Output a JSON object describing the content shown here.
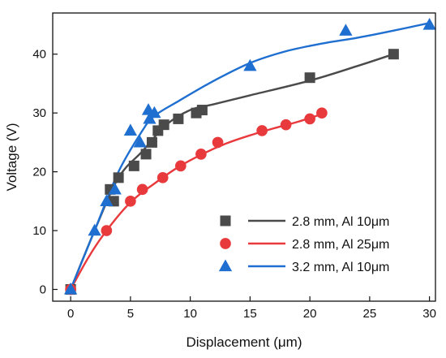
{
  "chart_data": {
    "type": "scatter",
    "xlabel": "Displacement (μm)",
    "ylabel": "Voltage (V)",
    "xlim": [
      -1.5,
      30.5
    ],
    "ylim": [
      -2,
      47
    ],
    "xticks": [
      0,
      5,
      10,
      15,
      20,
      25,
      30
    ],
    "yticks": [
      0,
      10,
      20,
      30,
      40
    ],
    "grid": false,
    "legend_position": "bottom-right",
    "series": [
      {
        "name": "2.8 mm, Al 10μm",
        "color": "#4a4a4a",
        "marker": "square",
        "points": [
          [
            0,
            0
          ],
          [
            3.3,
            17
          ],
          [
            3.6,
            15
          ],
          [
            4,
            19
          ],
          [
            5.3,
            21
          ],
          [
            6.3,
            23
          ],
          [
            6.8,
            25
          ],
          [
            7.3,
            27
          ],
          [
            7.8,
            28
          ],
          [
            9,
            29
          ],
          [
            10.5,
            30
          ],
          [
            11,
            30.5
          ],
          [
            20,
            36
          ],
          [
            27,
            40
          ]
        ],
        "fit": [
          [
            0,
            0
          ],
          [
            2,
            10
          ],
          [
            4,
            19
          ],
          [
            6,
            23.5
          ],
          [
            8,
            28
          ],
          [
            10,
            30.5
          ],
          [
            12,
            31.5
          ],
          [
            15,
            33
          ],
          [
            20,
            35.5
          ],
          [
            24,
            38
          ],
          [
            27,
            40
          ]
        ]
      },
      {
        "name": "2.8 mm, Al 25μm",
        "color": "#e8393d",
        "marker": "circle",
        "points": [
          [
            0,
            0
          ],
          [
            3,
            10
          ],
          [
            5,
            15
          ],
          [
            6,
            17
          ],
          [
            7.7,
            19
          ],
          [
            9.2,
            21
          ],
          [
            10.9,
            23
          ],
          [
            12.3,
            25
          ],
          [
            16,
            27
          ],
          [
            18,
            28
          ],
          [
            20,
            29
          ],
          [
            21,
            30
          ]
        ],
        "fit": [
          [
            0,
            0
          ],
          [
            1.5,
            5.5
          ],
          [
            3,
            10
          ],
          [
            5,
            14.8
          ],
          [
            7,
            18
          ],
          [
            9,
            20.8
          ],
          [
            11,
            23
          ],
          [
            13,
            24.8
          ],
          [
            15,
            26.2
          ],
          [
            17,
            27.4
          ],
          [
            19,
            28.5
          ],
          [
            21,
            29.8
          ]
        ]
      },
      {
        "name": "3.2 mm, Al 10μm",
        "color": "#1f6fd1",
        "marker": "triangle",
        "points": [
          [
            0,
            0
          ],
          [
            2,
            10
          ],
          [
            3,
            15
          ],
          [
            3.7,
            17
          ],
          [
            5,
            27
          ],
          [
            5.8,
            25
          ],
          [
            6.5,
            30.5
          ],
          [
            6.6,
            29
          ],
          [
            7,
            30
          ],
          [
            15,
            38
          ],
          [
            23,
            44
          ],
          [
            30,
            45
          ]
        ],
        "fit": [
          [
            0,
            0
          ],
          [
            2,
            10
          ],
          [
            4,
            20
          ],
          [
            6,
            27
          ],
          [
            7,
            29.5
          ],
          [
            9,
            32
          ],
          [
            12,
            35.5
          ],
          [
            15,
            38.5
          ],
          [
            18,
            40.5
          ],
          [
            21,
            41.8
          ],
          [
            24,
            42.8
          ],
          [
            27,
            44
          ],
          [
            30,
            45.3
          ]
        ]
      }
    ]
  }
}
